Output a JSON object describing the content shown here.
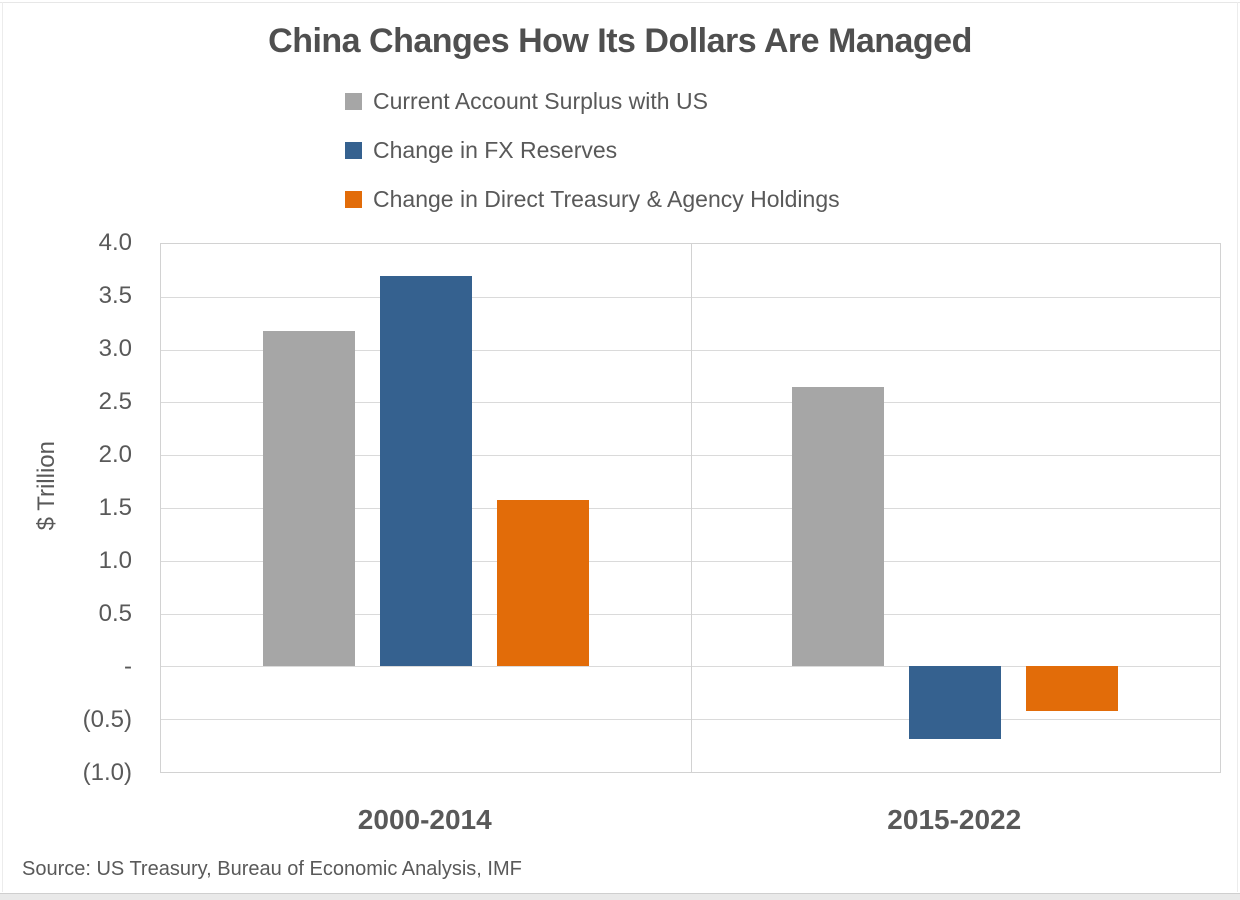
{
  "title": "China Changes How Its Dollars Are Managed",
  "source_note": "Source: US Treasury, Bureau of Economic Analysis, IMF",
  "colors": {
    "series_gray": "#A6A6A6",
    "series_blue": "#35618F",
    "series_orange": "#E26C09",
    "title_text": "#4F4F4F",
    "body_text": "#595959",
    "gridline": "#DADADA",
    "plot_border": "#D2D2D2"
  },
  "chart_data": {
    "type": "bar",
    "title": "China Changes How Its Dollars Are Managed",
    "categories": [
      "2000-2014",
      "2015-2022"
    ],
    "series": [
      {
        "name": "Current Account Surplus with US",
        "color": "#A6A6A6",
        "values": [
          3.18,
          2.65
        ]
      },
      {
        "name": "Change in FX Reserves",
        "color": "#35618F",
        "values": [
          3.7,
          -0.69
        ]
      },
      {
        "name": "Change in Direct Treasury & Agency Holdings",
        "color": "#E26C09",
        "values": [
          1.58,
          -0.42
        ]
      }
    ],
    "ylabel": "$ Trillion",
    "ylim": [
      -1.0,
      4.0
    ],
    "ytick_step": 0.5,
    "ytick_labels": [
      "4.0",
      "3.5",
      "3.0",
      "2.5",
      "2.0",
      "1.5",
      "1.0",
      "0.5",
      "-",
      "(0.5)",
      "(1.0)"
    ],
    "grid": true,
    "legend_position": "top"
  }
}
